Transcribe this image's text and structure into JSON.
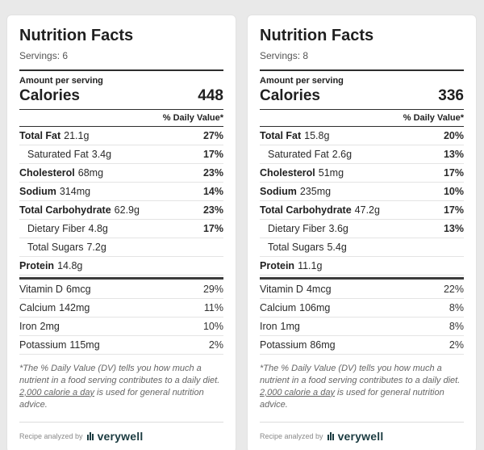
{
  "colors": {
    "page_background": "#e9e9e9",
    "brand_teal": "#1b3b40",
    "rule_dark": "#2d2d2d"
  },
  "labels": [
    {
      "title": "Nutrition Facts",
      "servings": "Servings: 6",
      "amount_per_serving": "Amount per serving",
      "calories_label": "Calories",
      "calories_value": "448",
      "daily_value_header": "% Daily Value*",
      "rows": [
        {
          "label": "Total Fat",
          "amount": "21.1g",
          "dv": "27%",
          "style": "main"
        },
        {
          "label": "Saturated Fat",
          "amount": "3.4g",
          "dv": "17%",
          "style": "sub"
        },
        {
          "label": "Cholesterol",
          "amount": "68mg",
          "dv": "23%",
          "style": "main"
        },
        {
          "label": "Sodium",
          "amount": "314mg",
          "dv": "14%",
          "style": "main"
        },
        {
          "label": "Total Carbohydrate",
          "amount": "62.9g",
          "dv": "23%",
          "style": "main"
        },
        {
          "label": "Dietary Fiber",
          "amount": "4.8g",
          "dv": "17%",
          "style": "sub"
        },
        {
          "label": "Total Sugars",
          "amount": "7.2g",
          "dv": "",
          "style": "sub"
        },
        {
          "label": "Protein",
          "amount": "14.8g",
          "dv": "",
          "style": "main"
        }
      ],
      "vitamins": [
        {
          "label": "Vitamin D",
          "amount": "6mcg",
          "dv": "29%",
          "style": "vit"
        },
        {
          "label": "Calcium",
          "amount": "142mg",
          "dv": "11%",
          "style": "vit"
        },
        {
          "label": "Iron",
          "amount": "2mg",
          "dv": "10%",
          "style": "vit"
        },
        {
          "label": "Potassium",
          "amount": "115mg",
          "dv": "2%",
          "style": "vit"
        }
      ],
      "footnote": {
        "pre": "*The % Daily Value (DV) tells you how much a nutrient in a food serving contributes to a daily diet. ",
        "link": "2,000 calorie a day",
        "post": " is used for general nutrition advice."
      },
      "footer": {
        "analyzed_by": "Recipe analyzed by",
        "brand": "verywell"
      }
    },
    {
      "title": "Nutrition Facts",
      "servings": "Servings: 8",
      "amount_per_serving": "Amount per serving",
      "calories_label": "Calories",
      "calories_value": "336",
      "daily_value_header": "% Daily Value*",
      "rows": [
        {
          "label": "Total Fat",
          "amount": "15.8g",
          "dv": "20%",
          "style": "main"
        },
        {
          "label": "Saturated Fat",
          "amount": "2.6g",
          "dv": "13%",
          "style": "sub"
        },
        {
          "label": "Cholesterol",
          "amount": "51mg",
          "dv": "17%",
          "style": "main"
        },
        {
          "label": "Sodium",
          "amount": "235mg",
          "dv": "10%",
          "style": "main"
        },
        {
          "label": "Total Carbohydrate",
          "amount": "47.2g",
          "dv": "17%",
          "style": "main"
        },
        {
          "label": "Dietary Fiber",
          "amount": "3.6g",
          "dv": "13%",
          "style": "sub"
        },
        {
          "label": "Total Sugars",
          "amount": "5.4g",
          "dv": "",
          "style": "sub"
        },
        {
          "label": "Protein",
          "amount": "11.1g",
          "dv": "",
          "style": "main"
        }
      ],
      "vitamins": [
        {
          "label": "Vitamin D",
          "amount": "4mcg",
          "dv": "22%",
          "style": "vit"
        },
        {
          "label": "Calcium",
          "amount": "106mg",
          "dv": "8%",
          "style": "vit"
        },
        {
          "label": "Iron",
          "amount": "1mg",
          "dv": "8%",
          "style": "vit"
        },
        {
          "label": "Potassium",
          "amount": "86mg",
          "dv": "2%",
          "style": "vit"
        }
      ],
      "footnote": {
        "pre": "*The % Daily Value (DV) tells you how much a nutrient in a food serving contributes to a daily diet. ",
        "link": "2,000 calorie a day",
        "post": " is used for general nutrition advice."
      },
      "footer": {
        "analyzed_by": "Recipe analyzed by",
        "brand": "verywell"
      }
    }
  ]
}
